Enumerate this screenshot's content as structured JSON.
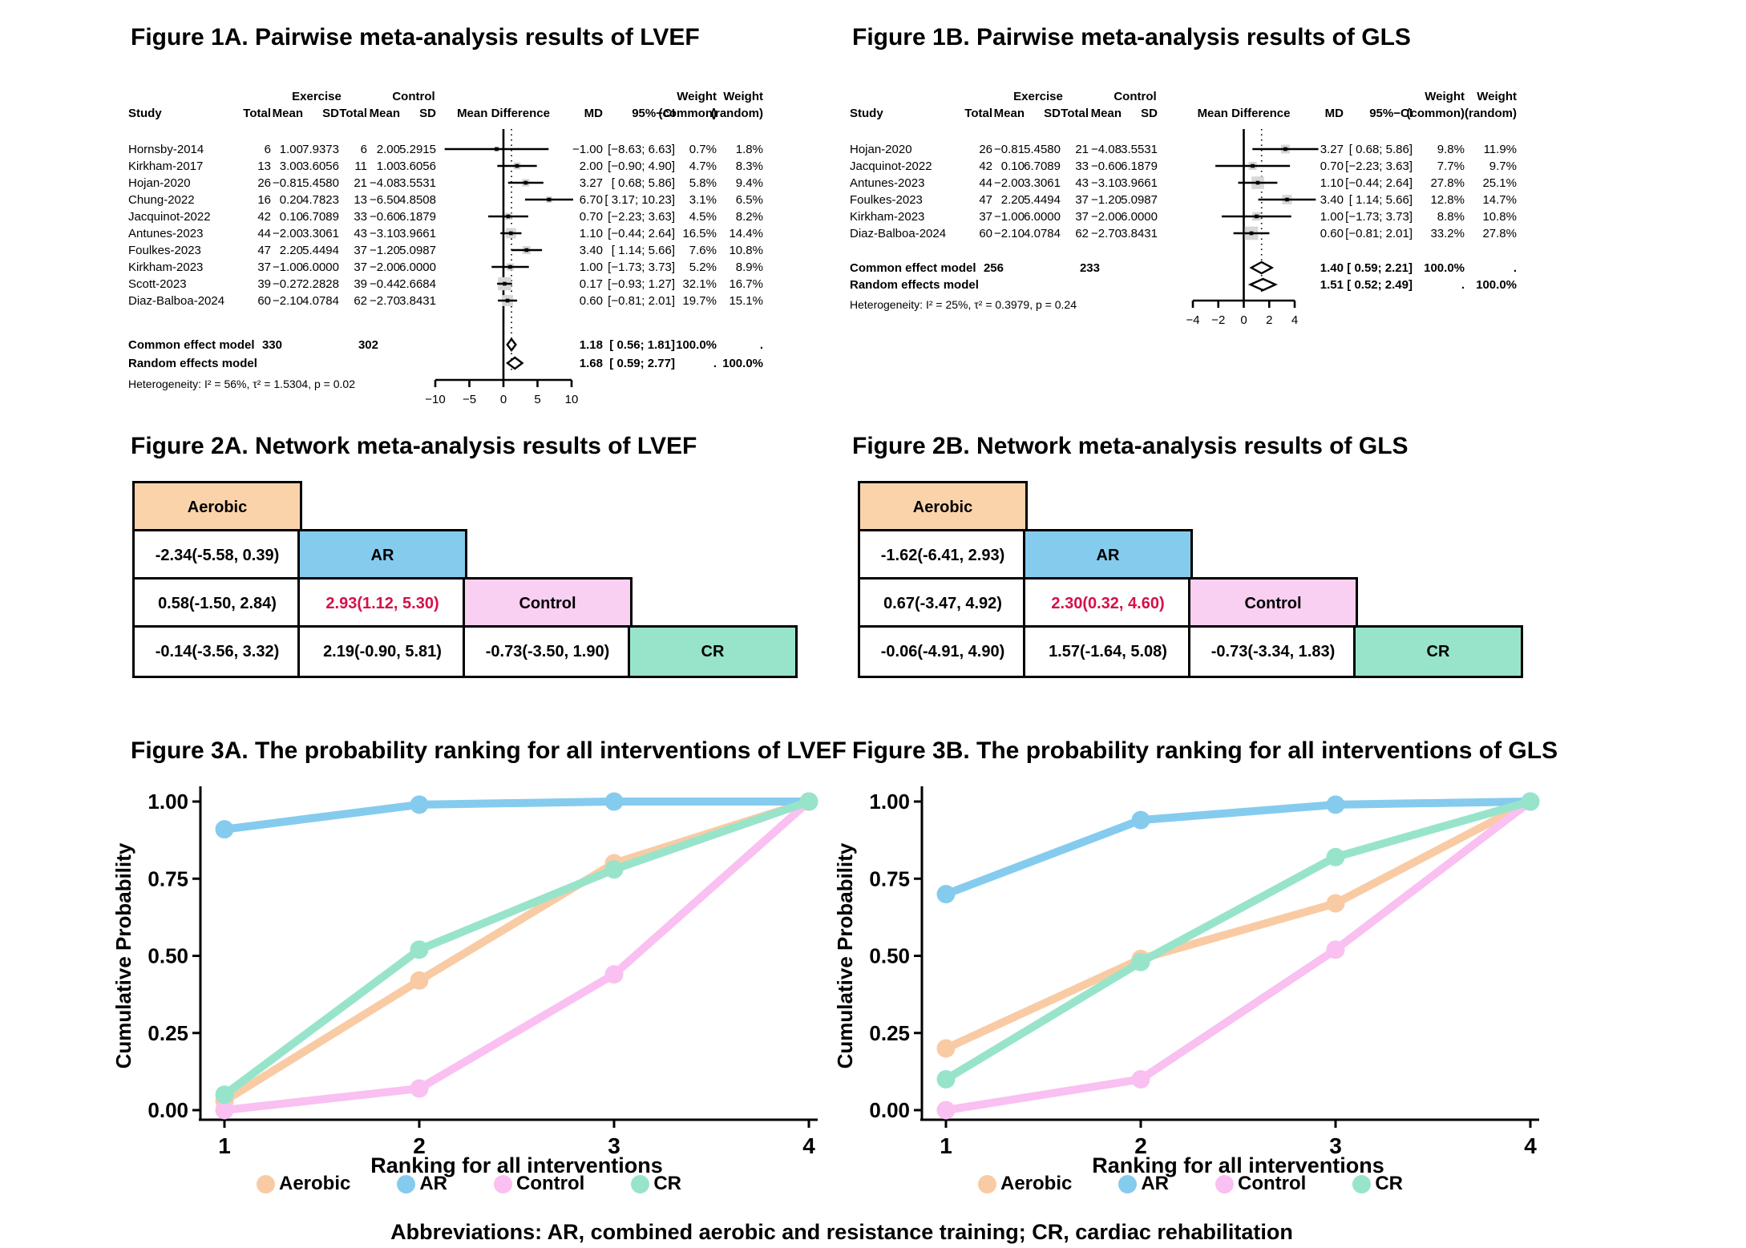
{
  "footer": "Abbreviations: AR, combined aerobic and resistance training; CR, cardiac rehabilitation",
  "chart_data": [
    {
      "id": "fig1a",
      "type": "scatter",
      "subtype": "forest-plot",
      "title": "Figure 1A. Pairwise meta-analysis results of LVEF",
      "headers": {
        "study": "Study",
        "group1": "Exercise",
        "group2": "Control",
        "total": "Total",
        "mean": "Mean",
        "sd": "SD",
        "effect": "Mean Difference",
        "md": "MD",
        "ci": "95%−CI",
        "weight": "Weight",
        "common": "(common)",
        "random": "(random)"
      },
      "studies": [
        {
          "name": "Hornsby-2014",
          "e_total": "6",
          "e_mean": "1.00",
          "e_sd": "7.9373",
          "c_total": "6",
          "c_mean": "2.00",
          "c_sd": "5.2915",
          "md": -1.0,
          "lo": -8.63,
          "hi": 6.63,
          "md_text": "−1.00",
          "ci_text": "[−8.63; 6.63]",
          "w_common": "0.7%",
          "w_random": "1.8%"
        },
        {
          "name": "Kirkham-2017",
          "e_total": "13",
          "e_mean": "3.00",
          "e_sd": "3.6056",
          "c_total": "11",
          "c_mean": "1.00",
          "c_sd": "3.6056",
          "md": 2.0,
          "lo": -0.9,
          "hi": 4.9,
          "md_text": "2.00",
          "ci_text": "[−0.90; 4.90]",
          "w_common": "4.7%",
          "w_random": "8.3%"
        },
        {
          "name": "Hojan-2020",
          "e_total": "26",
          "e_mean": "−0.81",
          "e_sd": "5.4580",
          "c_total": "21",
          "c_mean": "−4.08",
          "c_sd": "3.5531",
          "md": 3.27,
          "lo": 0.68,
          "hi": 5.86,
          "md_text": "3.27",
          "ci_text": "[ 0.68; 5.86]",
          "w_common": "5.8%",
          "w_random": "9.4%"
        },
        {
          "name": "Chung-2022",
          "e_total": "16",
          "e_mean": "0.20",
          "e_sd": "4.7823",
          "c_total": "13",
          "c_mean": "−6.50",
          "c_sd": "4.8508",
          "md": 6.7,
          "lo": 3.17,
          "hi": 10.23,
          "md_text": "6.70",
          "ci_text": "[ 3.17; 10.23]",
          "w_common": "3.1%",
          "w_random": "6.5%"
        },
        {
          "name": "Jacquinot-2022",
          "e_total": "42",
          "e_mean": "0.10",
          "e_sd": "6.7089",
          "c_total": "33",
          "c_mean": "−0.60",
          "c_sd": "6.1879",
          "md": 0.7,
          "lo": -2.23,
          "hi": 3.63,
          "md_text": "0.70",
          "ci_text": "[−2.23; 3.63]",
          "w_common": "4.5%",
          "w_random": "8.2%"
        },
        {
          "name": "Antunes-2023",
          "e_total": "44",
          "e_mean": "−2.00",
          "e_sd": "3.3061",
          "c_total": "43",
          "c_mean": "−3.10",
          "c_sd": "3.9661",
          "md": 1.1,
          "lo": -0.44,
          "hi": 2.64,
          "md_text": "1.10",
          "ci_text": "[−0.44; 2.64]",
          "w_common": "16.5%",
          "w_random": "14.4%"
        },
        {
          "name": "Foulkes-2023",
          "e_total": "47",
          "e_mean": "2.20",
          "e_sd": "5.4494",
          "c_total": "37",
          "c_mean": "−1.20",
          "c_sd": "5.0987",
          "md": 3.4,
          "lo": 1.14,
          "hi": 5.66,
          "md_text": "3.40",
          "ci_text": "[ 1.14; 5.66]",
          "w_common": "7.6%",
          "w_random": "10.8%"
        },
        {
          "name": "Kirkham-2023",
          "e_total": "37",
          "e_mean": "−1.00",
          "e_sd": "6.0000",
          "c_total": "37",
          "c_mean": "−2.00",
          "c_sd": "6.0000",
          "md": 1.0,
          "lo": -1.73,
          "hi": 3.73,
          "md_text": "1.00",
          "ci_text": "[−1.73; 3.73]",
          "w_common": "5.2%",
          "w_random": "8.9%"
        },
        {
          "name": "Scott-2023",
          "e_total": "39",
          "e_mean": "−0.27",
          "e_sd": "2.2828",
          "c_total": "39",
          "c_mean": "−0.44",
          "c_sd": "2.6684",
          "md": 0.17,
          "lo": -0.93,
          "hi": 1.27,
          "md_text": "0.17",
          "ci_text": "[−0.93; 1.27]",
          "w_common": "32.1%",
          "w_random": "16.7%"
        },
        {
          "name": "Diaz-Balboa-2024",
          "e_total": "60",
          "e_mean": "−2.10",
          "e_sd": "4.0784",
          "c_total": "62",
          "c_mean": "−2.70",
          "c_sd": "3.8431",
          "md": 0.6,
          "lo": -0.81,
          "hi": 2.01,
          "md_text": "0.60",
          "ci_text": "[−0.81; 2.01]",
          "w_common": "19.7%",
          "w_random": "15.1%"
        }
      ],
      "common": {
        "label": "Common effect model",
        "e_total": "330",
        "c_total": "302",
        "md": 1.18,
        "lo": 0.56,
        "hi": 1.81,
        "md_text": "1.18",
        "ci_text": "[ 0.56; 1.81]",
        "w_common": "100.0%",
        "w_random": "."
      },
      "random": {
        "label": "Random effects model",
        "md": 1.68,
        "lo": 0.59,
        "hi": 2.77,
        "md_text": "1.68",
        "ci_text": "[ 0.59; 2.77]",
        "w_common": ".",
        "w_random": "100.0%"
      },
      "heterogeneity": "Heterogeneity: I² = 56%, τ² = 1.5304, p = 0.02",
      "axis": {
        "min": -10,
        "max": 10,
        "tick_values": [
          -10,
          -5,
          0,
          5,
          10
        ],
        "tick_labels": [
          "−10",
          "−5",
          "0",
          "5",
          "10"
        ]
      },
      "reference_line": 0,
      "dashed_line": 1.18
    },
    {
      "id": "fig1b",
      "type": "scatter",
      "subtype": "forest-plot",
      "title": "Figure 1B. Pairwise meta-analysis results of GLS",
      "headers": {
        "study": "Study",
        "group1": "Exercise",
        "group2": "Control",
        "total": "Total",
        "mean": "Mean",
        "sd": "SD",
        "effect": "Mean Difference",
        "md": "MD",
        "ci": "95%−CI",
        "weight": "Weight",
        "common": "(common)",
        "random": "(random)"
      },
      "studies": [
        {
          "name": "Hojan-2020",
          "e_total": "26",
          "e_mean": "−0.81",
          "e_sd": "5.4580",
          "c_total": "21",
          "c_mean": "−4.08",
          "c_sd": "3.5531",
          "md": 3.27,
          "lo": 0.68,
          "hi": 5.86,
          "md_text": "3.27",
          "ci_text": "[ 0.68; 5.86]",
          "w_common": "9.8%",
          "w_random": "11.9%"
        },
        {
          "name": "Jacquinot-2022",
          "e_total": "42",
          "e_mean": "0.10",
          "e_sd": "6.7089",
          "c_total": "33",
          "c_mean": "−0.60",
          "c_sd": "6.1879",
          "md": 0.7,
          "lo": -2.23,
          "hi": 3.63,
          "md_text": "0.70",
          "ci_text": "[−2.23; 3.63]",
          "w_common": "7.7%",
          "w_random": "9.7%"
        },
        {
          "name": "Antunes-2023",
          "e_total": "44",
          "e_mean": "−2.00",
          "e_sd": "3.3061",
          "c_total": "43",
          "c_mean": "−3.10",
          "c_sd": "3.9661",
          "md": 1.1,
          "lo": -0.44,
          "hi": 2.64,
          "md_text": "1.10",
          "ci_text": "[−0.44; 2.64]",
          "w_common": "27.8%",
          "w_random": "25.1%"
        },
        {
          "name": "Foulkes-2023",
          "e_total": "47",
          "e_mean": "2.20",
          "e_sd": "5.4494",
          "c_total": "37",
          "c_mean": "−1.20",
          "c_sd": "5.0987",
          "md": 3.4,
          "lo": 1.14,
          "hi": 5.66,
          "md_text": "3.40",
          "ci_text": "[ 1.14; 5.66]",
          "w_common": "12.8%",
          "w_random": "14.7%"
        },
        {
          "name": "Kirkham-2023",
          "e_total": "37",
          "e_mean": "−1.00",
          "e_sd": "6.0000",
          "c_total": "37",
          "c_mean": "−2.00",
          "c_sd": "6.0000",
          "md": 1.0,
          "lo": -1.73,
          "hi": 3.73,
          "md_text": "1.00",
          "ci_text": "[−1.73; 3.73]",
          "w_common": "8.8%",
          "w_random": "10.8%"
        },
        {
          "name": "Diaz-Balboa-2024",
          "e_total": "60",
          "e_mean": "−2.10",
          "e_sd": "4.0784",
          "c_total": "62",
          "c_mean": "−2.70",
          "c_sd": "3.8431",
          "md": 0.6,
          "lo": -0.81,
          "hi": 2.01,
          "md_text": "0.60",
          "ci_text": "[−0.81; 2.01]",
          "w_common": "33.2%",
          "w_random": "27.8%"
        }
      ],
      "common": {
        "label": "Common effect model",
        "e_total": "256",
        "c_total": "233",
        "md": 1.4,
        "lo": 0.59,
        "hi": 2.21,
        "md_text": "1.40",
        "ci_text": "[ 0.59; 2.21]",
        "w_common": "100.0%",
        "w_random": "."
      },
      "random": {
        "label": "Random effects model",
        "md": 1.51,
        "lo": 0.52,
        "hi": 2.49,
        "md_text": "1.51",
        "ci_text": "[ 0.52; 2.49]",
        "w_common": ".",
        "w_random": "100.0%"
      },
      "heterogeneity": "Heterogeneity: I² = 25%, τ² = 0.3979, p = 0.24",
      "axis": {
        "min": -4,
        "max": 4,
        "tick_values": [
          -4,
          -2,
          0,
          2,
          4
        ],
        "tick_labels": [
          "−4",
          "−2",
          "0",
          "2",
          "4"
        ]
      },
      "reference_line": 0,
      "dashed_line": 1.4
    },
    {
      "id": "fig2a",
      "type": "table",
      "subtype": "league-table",
      "title": "Figure 2A. Network meta-analysis results of LVEF",
      "treatments": [
        "Aerobic",
        "AR",
        "Control",
        "CR"
      ],
      "treatment_colors": {
        "Aerobic": "#FAD3AA",
        "AR": "#85CBEE",
        "Control": "#F9CFF2",
        "CR": "#98E4CB"
      },
      "highlight_color": "#D51048",
      "rows": [
        [
          {
            "text": "Aerobic",
            "header": true
          }
        ],
        [
          {
            "text": "-2.34(-5.58, 0.39)"
          },
          {
            "text": "AR",
            "header": true
          }
        ],
        [
          {
            "text": "0.58(-1.50, 2.84)"
          },
          {
            "text": "2.93(1.12, 5.30)",
            "highlight": true
          },
          {
            "text": "Control",
            "header": true
          }
        ],
        [
          {
            "text": "-0.14(-3.56, 3.32)"
          },
          {
            "text": "2.19(-0.90, 5.81)"
          },
          {
            "text": "-0.73(-3.50, 1.90)"
          },
          {
            "text": "CR",
            "header": true
          }
        ]
      ]
    },
    {
      "id": "fig2b",
      "type": "table",
      "subtype": "league-table",
      "title": "Figure 2B. Network meta-analysis results of GLS",
      "treatments": [
        "Aerobic",
        "AR",
        "Control",
        "CR"
      ],
      "treatment_colors": {
        "Aerobic": "#FAD3AA",
        "AR": "#85CBEE",
        "Control": "#F9CFF2",
        "CR": "#98E4CB"
      },
      "highlight_color": "#D51048",
      "rows": [
        [
          {
            "text": "Aerobic",
            "header": true
          }
        ],
        [
          {
            "text": "-1.62(-6.41, 2.93)"
          },
          {
            "text": "AR",
            "header": true
          }
        ],
        [
          {
            "text": "0.67(-3.47, 4.92)"
          },
          {
            "text": "2.30(0.32, 4.60)",
            "highlight": true
          },
          {
            "text": "Control",
            "header": true
          }
        ],
        [
          {
            "text": "-0.06(-4.91, 4.90)"
          },
          {
            "text": "1.57(-1.64, 5.08)"
          },
          {
            "text": "-0.73(-3.34, 1.83)"
          },
          {
            "text": "CR",
            "header": true
          }
        ]
      ]
    },
    {
      "id": "fig3a",
      "type": "line",
      "title": "Figure 3A. The probability ranking for all interventions of LVEF",
      "xlabel": "Ranking for all interventions",
      "ylabel": "Cumulative Probability",
      "x": [
        1,
        2,
        3,
        4
      ],
      "xtick_labels": [
        "1",
        "2",
        "3",
        "4"
      ],
      "ytick_labels": [
        "0.00",
        "0.25",
        "0.50",
        "0.75",
        "1.00"
      ],
      "ytick_values": [
        0,
        0.25,
        0.5,
        0.75,
        1
      ],
      "ylim": [
        0,
        1
      ],
      "grid": false,
      "legend_position": "bottom",
      "series": [
        {
          "name": "Aerobic",
          "color": "#F9CBA4",
          "values": [
            0.03,
            0.42,
            0.8,
            1.0
          ]
        },
        {
          "name": "AR",
          "color": "#85CBEE",
          "values": [
            0.91,
            0.99,
            1.0,
            1.0
          ]
        },
        {
          "name": "Control",
          "color": "#F9C0F1",
          "values": [
            0.0,
            0.07,
            0.44,
            1.0
          ]
        },
        {
          "name": "CR",
          "color": "#98E4CB",
          "values": [
            0.05,
            0.52,
            0.78,
            1.0
          ]
        }
      ]
    },
    {
      "id": "fig3b",
      "type": "line",
      "title": "Figure 3B. The probability ranking for all interventions of GLS",
      "xlabel": "Ranking for all interventions",
      "ylabel": "Cumulative Probability",
      "x": [
        1,
        2,
        3,
        4
      ],
      "xtick_labels": [
        "1",
        "2",
        "3",
        "4"
      ],
      "ytick_labels": [
        "0.00",
        "0.25",
        "0.50",
        "0.75",
        "1.00"
      ],
      "ytick_values": [
        0,
        0.25,
        0.5,
        0.75,
        1
      ],
      "ylim": [
        0,
        1
      ],
      "grid": false,
      "legend_position": "bottom",
      "series": [
        {
          "name": "Aerobic",
          "color": "#F9CBA4",
          "values": [
            0.2,
            0.49,
            0.67,
            1.0
          ]
        },
        {
          "name": "AR",
          "color": "#85CBEE",
          "values": [
            0.7,
            0.94,
            0.99,
            1.0
          ]
        },
        {
          "name": "Control",
          "color": "#F9C0F1",
          "values": [
            0.0,
            0.1,
            0.52,
            1.0
          ]
        },
        {
          "name": "CR",
          "color": "#98E4CB",
          "values": [
            0.1,
            0.48,
            0.82,
            1.0
          ]
        }
      ]
    }
  ]
}
